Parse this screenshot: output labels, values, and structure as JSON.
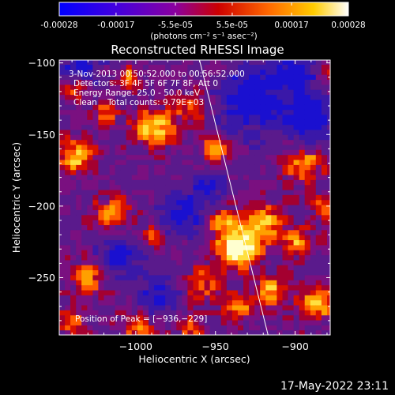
{
  "colorbar": {
    "ticks": [
      "-0.00028",
      "-0.00017",
      "-5.5e-05",
      "5.5e-05",
      "0.00017",
      "0.00028"
    ],
    "tick_values": [
      -0.00028,
      -0.00017,
      -5.5e-05,
      5.5e-05,
      0.00017,
      0.00028
    ],
    "range": [
      -0.00028,
      0.00028
    ],
    "units": "(photons cm⁻² s⁻¹ asec⁻²)",
    "colors": [
      "#0000ff",
      "#4400dd",
      "#8a00a0",
      "#cc0000",
      "#ff6600",
      "#ffcc00",
      "#ffffff"
    ]
  },
  "chart_data": {
    "type": "heatmap",
    "title": "Reconstructed RHESSI Image",
    "xlabel": "Heliocentric X (arcsec)",
    "ylabel": "Heliocentric Y (arcsec)",
    "xlim": [
      -1048,
      -878
    ],
    "ylim": [
      -290,
      -98
    ],
    "xticks": [
      -1000,
      -950,
      -900
    ],
    "xtick_labels": [
      "−1000",
      "−950",
      "−900"
    ],
    "yticks": [
      -100,
      -150,
      -200,
      -250
    ],
    "ytick_labels": [
      "−100",
      "−150",
      "−200",
      "−250"
    ],
    "annotations": [
      "3-Nov-2013 00:50:52.000 to 00:56:52.000",
      "Detectors: 3F 4F 5F 6F 7F 8F, Att 0",
      "Energy Range: 25.0 - 50.0 keV",
      "Clean    Total counts: 9.79E+03"
    ],
    "peak_label": "Position of Peak = [−936,−229]",
    "peak": [
      -936,
      -229
    ],
    "limb_line": [
      [
        -960,
        -98
      ],
      [
        -917,
        -290
      ]
    ],
    "grid": false
  },
  "footer": {
    "date": "17-May-2022 23:11"
  }
}
